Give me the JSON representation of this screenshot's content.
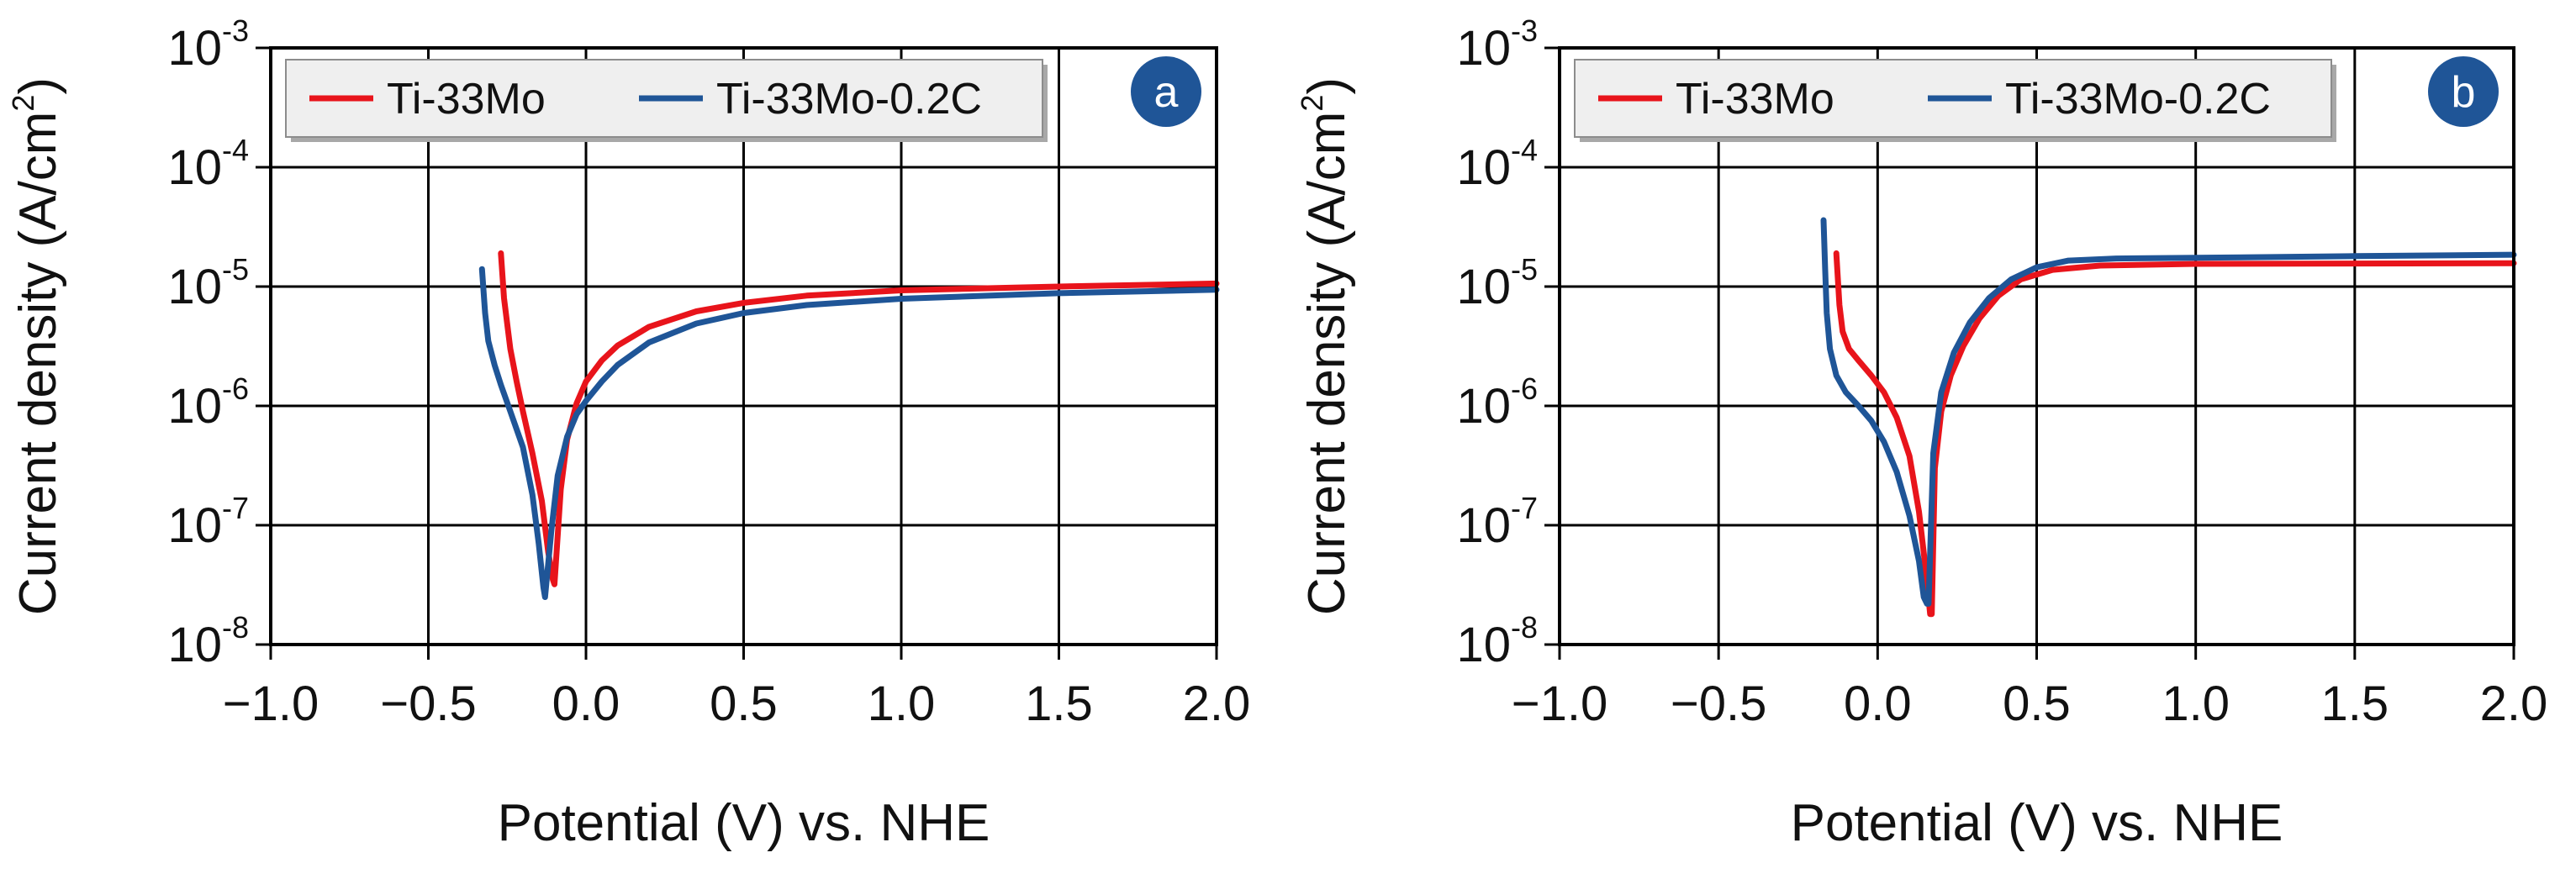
{
  "chart_data": [
    {
      "type": "line",
      "panel_label": "a",
      "xlabel": "Potential (V) vs. NHE",
      "ylabel": "Current density (A/cm",
      "ylabel_sup": "2",
      "ylabel_close": ")",
      "xlim": [
        -1.0,
        2.0
      ],
      "xticks": [
        -1.0,
        -0.5,
        0.0,
        0.5,
        1.0,
        1.5,
        2.0
      ],
      "xtick_labels": [
        "−1.0",
        "−0.5",
        "0.0",
        "0.5",
        "1.0",
        "1.5",
        "2.0"
      ],
      "ylim": [
        1e-08,
        0.001
      ],
      "yscale": "log",
      "yticks": [
        {
          "base": "10",
          "exp": "-8"
        },
        {
          "base": "10",
          "exp": "-7"
        },
        {
          "base": "10",
          "exp": "-6"
        },
        {
          "base": "10",
          "exp": "-5"
        },
        {
          "base": "10",
          "exp": "-4"
        },
        {
          "base": "10",
          "exp": "-3"
        }
      ],
      "grid": true,
      "legend_position": "top",
      "series": [
        {
          "name": "Ti-33Mo",
          "color": "#e8141b",
          "x": [
            -0.27,
            -0.26,
            -0.24,
            -0.22,
            -0.2,
            -0.17,
            -0.14,
            -0.12,
            -0.105,
            -0.1,
            -0.08,
            -0.06,
            -0.03,
            0.0,
            0.05,
            0.1,
            0.2,
            0.35,
            0.5,
            0.7,
            1.0,
            1.5,
            2.0
          ],
          "y": [
            1.9e-05,
            8e-06,
            3e-06,
            1.6e-06,
            9e-07,
            4e-07,
            1.6e-07,
            6e-08,
            3.5e-08,
            3.2e-08,
            2e-07,
            5.2e-07,
            1.05e-06,
            1.6e-06,
            2.4e-06,
            3.2e-06,
            4.6e-06,
            6.2e-06,
            7.3e-06,
            8.4e-06,
            9.3e-06,
            1e-05,
            1.06e-05
          ]
        },
        {
          "name": "Ti-33Mo-0.2C",
          "color": "#1f5597",
          "x": [
            -0.33,
            -0.32,
            -0.31,
            -0.29,
            -0.27,
            -0.24,
            -0.2,
            -0.17,
            -0.15,
            -0.135,
            -0.13,
            -0.11,
            -0.09,
            -0.06,
            -0.03,
            0.0,
            0.05,
            0.1,
            0.2,
            0.35,
            0.5,
            0.7,
            1.0,
            1.5,
            2.0
          ],
          "y": [
            1.4e-05,
            6e-06,
            3.5e-06,
            2.2e-06,
            1.5e-06,
            9e-07,
            4.5e-07,
            1.8e-07,
            7e-08,
            3e-08,
            2.5e-08,
            9e-08,
            2.6e-07,
            5.5e-07,
            8.5e-07,
            1.1e-06,
            1.6e-06,
            2.2e-06,
            3.4e-06,
            4.9e-06,
            6e-06,
            7e-06,
            7.9e-06,
            8.8e-06,
            9.4e-06
          ]
        }
      ]
    },
    {
      "type": "line",
      "panel_label": "b",
      "xlabel": "Potential (V) vs. NHE",
      "ylabel": "Current density (A/cm",
      "ylabel_sup": "2",
      "ylabel_close": ")",
      "xlim": [
        -1.0,
        2.0
      ],
      "xticks": [
        -1.0,
        -0.5,
        0.0,
        0.5,
        1.0,
        1.5,
        2.0
      ],
      "xtick_labels": [
        "−1.0",
        "−0.5",
        "0.0",
        "0.5",
        "1.0",
        "1.5",
        "2.0"
      ],
      "ylim": [
        1e-08,
        0.001
      ],
      "yscale": "log",
      "yticks": [
        {
          "base": "10",
          "exp": "-8"
        },
        {
          "base": "10",
          "exp": "-7"
        },
        {
          "base": "10",
          "exp": "-6"
        },
        {
          "base": "10",
          "exp": "-5"
        },
        {
          "base": "10",
          "exp": "-4"
        },
        {
          "base": "10",
          "exp": "-3"
        }
      ],
      "grid": true,
      "legend_position": "top",
      "series": [
        {
          "name": "Ti-33Mo",
          "color": "#e8141b",
          "x": [
            -0.13,
            -0.12,
            -0.11,
            -0.09,
            -0.06,
            -0.02,
            0.02,
            0.06,
            0.1,
            0.13,
            0.15,
            0.165,
            0.17,
            0.18,
            0.2,
            0.23,
            0.27,
            0.32,
            0.38,
            0.45,
            0.55,
            0.7,
            1.0,
            1.5,
            2.0
          ],
          "y": [
            1.9e-05,
            7e-06,
            4.2e-06,
            3e-06,
            2.4e-06,
            1.8e-06,
            1.3e-06,
            8e-07,
            3.8e-07,
            1.3e-07,
            4.5e-08,
            1.8e-08,
            1.8e-08,
            3e-07,
            9e-07,
            1.8e-06,
            3.2e-06,
            5.4e-06,
            8.4e-06,
            1.15e-05,
            1.38e-05,
            1.5e-05,
            1.55e-05,
            1.56e-05,
            1.57e-05
          ]
        },
        {
          "name": "Ti-33Mo-0.2C",
          "color": "#1f5597",
          "x": [
            -0.17,
            -0.165,
            -0.16,
            -0.15,
            -0.13,
            -0.1,
            -0.06,
            -0.02,
            0.02,
            0.06,
            0.1,
            0.13,
            0.145,
            0.155,
            0.16,
            0.175,
            0.2,
            0.24,
            0.29,
            0.35,
            0.42,
            0.5,
            0.6,
            0.75,
            1.0,
            1.5,
            2.0
          ],
          "y": [
            3.6e-05,
            1.4e-05,
            6e-06,
            3e-06,
            1.8e-06,
            1.3e-06,
            1e-06,
            7.5e-07,
            5e-07,
            2.8e-07,
            1.2e-07,
            5e-08,
            2.5e-08,
            2.2e-08,
            2.2e-08,
            4e-07,
            1.3e-06,
            2.8e-06,
            5e-06,
            8e-06,
            1.15e-05,
            1.45e-05,
            1.65e-05,
            1.72e-05,
            1.74e-05,
            1.8e-05,
            1.85e-05
          ]
        }
      ]
    }
  ]
}
